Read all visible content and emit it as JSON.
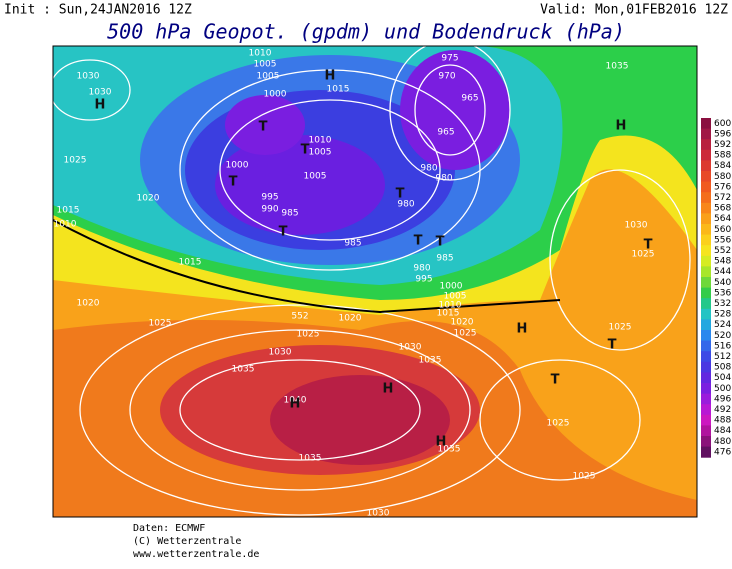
{
  "header": {
    "init": "Init : Sun,24JAN2016 12Z",
    "valid": "Valid: Mon,01FEB2016 12Z",
    "title": "500 hPa Geopot. (gpdm) und Bodendruck (hPa)"
  },
  "colorbar": {
    "labels": [
      "600",
      "596",
      "592",
      "588",
      "584",
      "580",
      "576",
      "572",
      "568",
      "564",
      "560",
      "556",
      "552",
      "548",
      "544",
      "540",
      "536",
      "532",
      "528",
      "524",
      "520",
      "516",
      "512",
      "508",
      "504",
      "500",
      "496",
      "492",
      "488",
      "484",
      "480",
      "476"
    ]
  },
  "map": {
    "isobar_labels": [
      "1030",
      "1030",
      "1025",
      "1015",
      "1010",
      "1020",
      "1015",
      "1020",
      "1025",
      "1010",
      "1005",
      "1005",
      "1000",
      "1015",
      "1010",
      "1005",
      "1000",
      "1005",
      "995",
      "990",
      "985",
      "985",
      "980",
      "980",
      "980",
      "975",
      "970",
      "965",
      "965",
      "985",
      "980",
      "995",
      "1000",
      "1005",
      "1010",
      "1015",
      "1020",
      "1025",
      "1030",
      "1035",
      "1035",
      "1030",
      "1025",
      "1020",
      "1040",
      "1035",
      "1035",
      "1025",
      "1025",
      "1025",
      "1030",
      "1025",
      "1035",
      "1030",
      "552"
    ],
    "pressure_centers": [
      "H",
      "H",
      "H",
      "H",
      "H",
      "H",
      "H",
      "T",
      "T",
      "T",
      "T",
      "T",
      "T",
      "T",
      "T",
      "T",
      "T"
    ]
  },
  "footer": {
    "lines": [
      "Daten: ECMWF",
      "(C) Wetterzentrale",
      "www.wetterzentrale.de"
    ]
  }
}
